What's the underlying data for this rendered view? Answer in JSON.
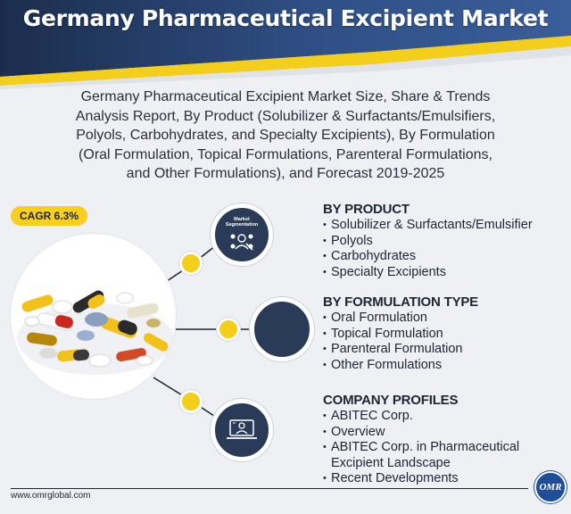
{
  "header": {
    "title": "Germany Pharmaceutical Excipient Market"
  },
  "subtitle": {
    "lines": [
      "Germany Pharmaceutical Excipient Market Size, Share & Trends",
      "Analysis Report, By Product (Solubilizer & Surfactants/Emulsifiers,",
      "Polyols, Carbohydrates, and Specialty Excipients), By Formulation",
      "(Oral Formulation, Topical Formulations, Parenteral Formulations,",
      "and Other Formulations), and Forecast 2019-2025"
    ]
  },
  "badge": {
    "cagr": "CAGR 6.3%"
  },
  "nodes": {
    "segmentation_label_1": "Market",
    "segmentation_label_2": "Segmentation"
  },
  "sections": {
    "product": {
      "heading": "BY PRODUCT",
      "items": [
        "Solubilizer & Surfactants/Emulsifier",
        "Polyols",
        "Carbohydrates",
        "Specialty Excipients"
      ]
    },
    "formulation": {
      "heading": "BY FORMULATION TYPE",
      "items": [
        "Oral Formulation",
        "Topical Formulation",
        "Parenteral Formulation",
        "Other Formulations"
      ]
    },
    "company": {
      "heading": "COMPANY PROFILES",
      "items": [
        "ABITEC Corp.",
        "Overview",
        "ABITEC Corp. in Pharmaceutical Excipient Landscape",
        "Recent Developments"
      ]
    }
  },
  "footer": {
    "url": "www.omrglobal.com",
    "logo_text": "OMR"
  },
  "colors": {
    "navy": "#2a3b57",
    "accent_yellow": "#f3cf1c",
    "background": "#eef0f4"
  },
  "icons": {
    "node_1": "people-network-icon",
    "node_3": "laptop-user-icon"
  }
}
